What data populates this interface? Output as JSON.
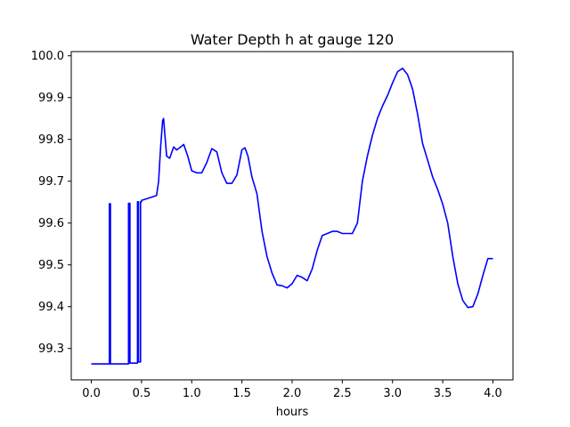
{
  "chart_data": {
    "type": "line",
    "title": "Water Depth h at gauge 120",
    "xlabel": "hours",
    "ylabel": "",
    "xlim": [
      -0.2,
      4.2
    ],
    "ylim": [
      99.225,
      100.01
    ],
    "xticks": [
      0.0,
      0.5,
      1.0,
      1.5,
      2.0,
      2.5,
      3.0,
      3.5,
      4.0
    ],
    "xtick_labels": [
      "0.0",
      "0.5",
      "1.0",
      "1.5",
      "2.0",
      "2.5",
      "3.0",
      "3.5",
      "4.0"
    ],
    "yticks": [
      99.3,
      99.4,
      99.5,
      99.6,
      99.7,
      99.8,
      99.9,
      100.0
    ],
    "ytick_labels": [
      "99.3",
      "99.4",
      "99.5",
      "99.6",
      "99.7",
      "99.8",
      "99.9",
      "100.0"
    ],
    "grid": false,
    "series": [
      {
        "color": "#0000ff",
        "x": [
          0.0,
          0.18,
          0.18,
          0.19,
          0.19,
          0.37,
          0.37,
          0.385,
          0.385,
          0.46,
          0.46,
          0.47,
          0.47,
          0.49,
          0.49,
          0.5,
          0.5,
          0.55,
          0.6,
          0.65,
          0.67,
          0.69,
          0.71,
          0.72,
          0.73,
          0.75,
          0.78,
          0.82,
          0.85,
          0.88,
          0.92,
          0.96,
          1.0,
          1.05,
          1.1,
          1.15,
          1.2,
          1.25,
          1.3,
          1.35,
          1.4,
          1.45,
          1.5,
          1.53,
          1.56,
          1.6,
          1.65,
          1.7,
          1.75,
          1.8,
          1.85,
          1.9,
          1.95,
          2.0,
          2.05,
          2.1,
          2.15,
          2.2,
          2.25,
          2.3,
          2.35,
          2.4,
          2.45,
          2.5,
          2.55,
          2.6,
          2.65,
          2.7,
          2.75,
          2.8,
          2.85,
          2.9,
          2.95,
          3.0,
          3.05,
          3.1,
          3.15,
          3.2,
          3.25,
          3.3,
          3.35,
          3.4,
          3.45,
          3.5,
          3.55,
          3.6,
          3.65,
          3.7,
          3.75,
          3.8,
          3.85,
          3.9,
          3.95,
          4.0
        ],
        "y": [
          99.263,
          99.263,
          99.646,
          99.646,
          99.263,
          99.263,
          99.647,
          99.647,
          99.265,
          99.265,
          99.651,
          99.651,
          99.268,
          99.268,
          99.651,
          99.651,
          99.654,
          99.658,
          99.662,
          99.666,
          99.7,
          99.78,
          99.845,
          99.85,
          99.82,
          99.76,
          99.755,
          99.782,
          99.775,
          99.78,
          99.788,
          99.76,
          99.725,
          99.72,
          99.72,
          99.745,
          99.778,
          99.77,
          99.72,
          99.695,
          99.695,
          99.715,
          99.775,
          99.78,
          99.76,
          99.71,
          99.67,
          99.58,
          99.52,
          99.48,
          99.452,
          99.45,
          99.445,
          99.455,
          99.475,
          99.47,
          99.462,
          99.49,
          99.535,
          99.57,
          99.575,
          99.58,
          99.58,
          99.575,
          99.575,
          99.575,
          99.6,
          99.7,
          99.76,
          99.81,
          99.85,
          99.88,
          99.905,
          99.935,
          99.962,
          99.97,
          99.955,
          99.92,
          99.86,
          99.79,
          99.75,
          99.71,
          99.68,
          99.645,
          99.6,
          99.52,
          99.455,
          99.415,
          99.398,
          99.4,
          99.43,
          99.475,
          99.515,
          99.515
        ]
      }
    ]
  }
}
